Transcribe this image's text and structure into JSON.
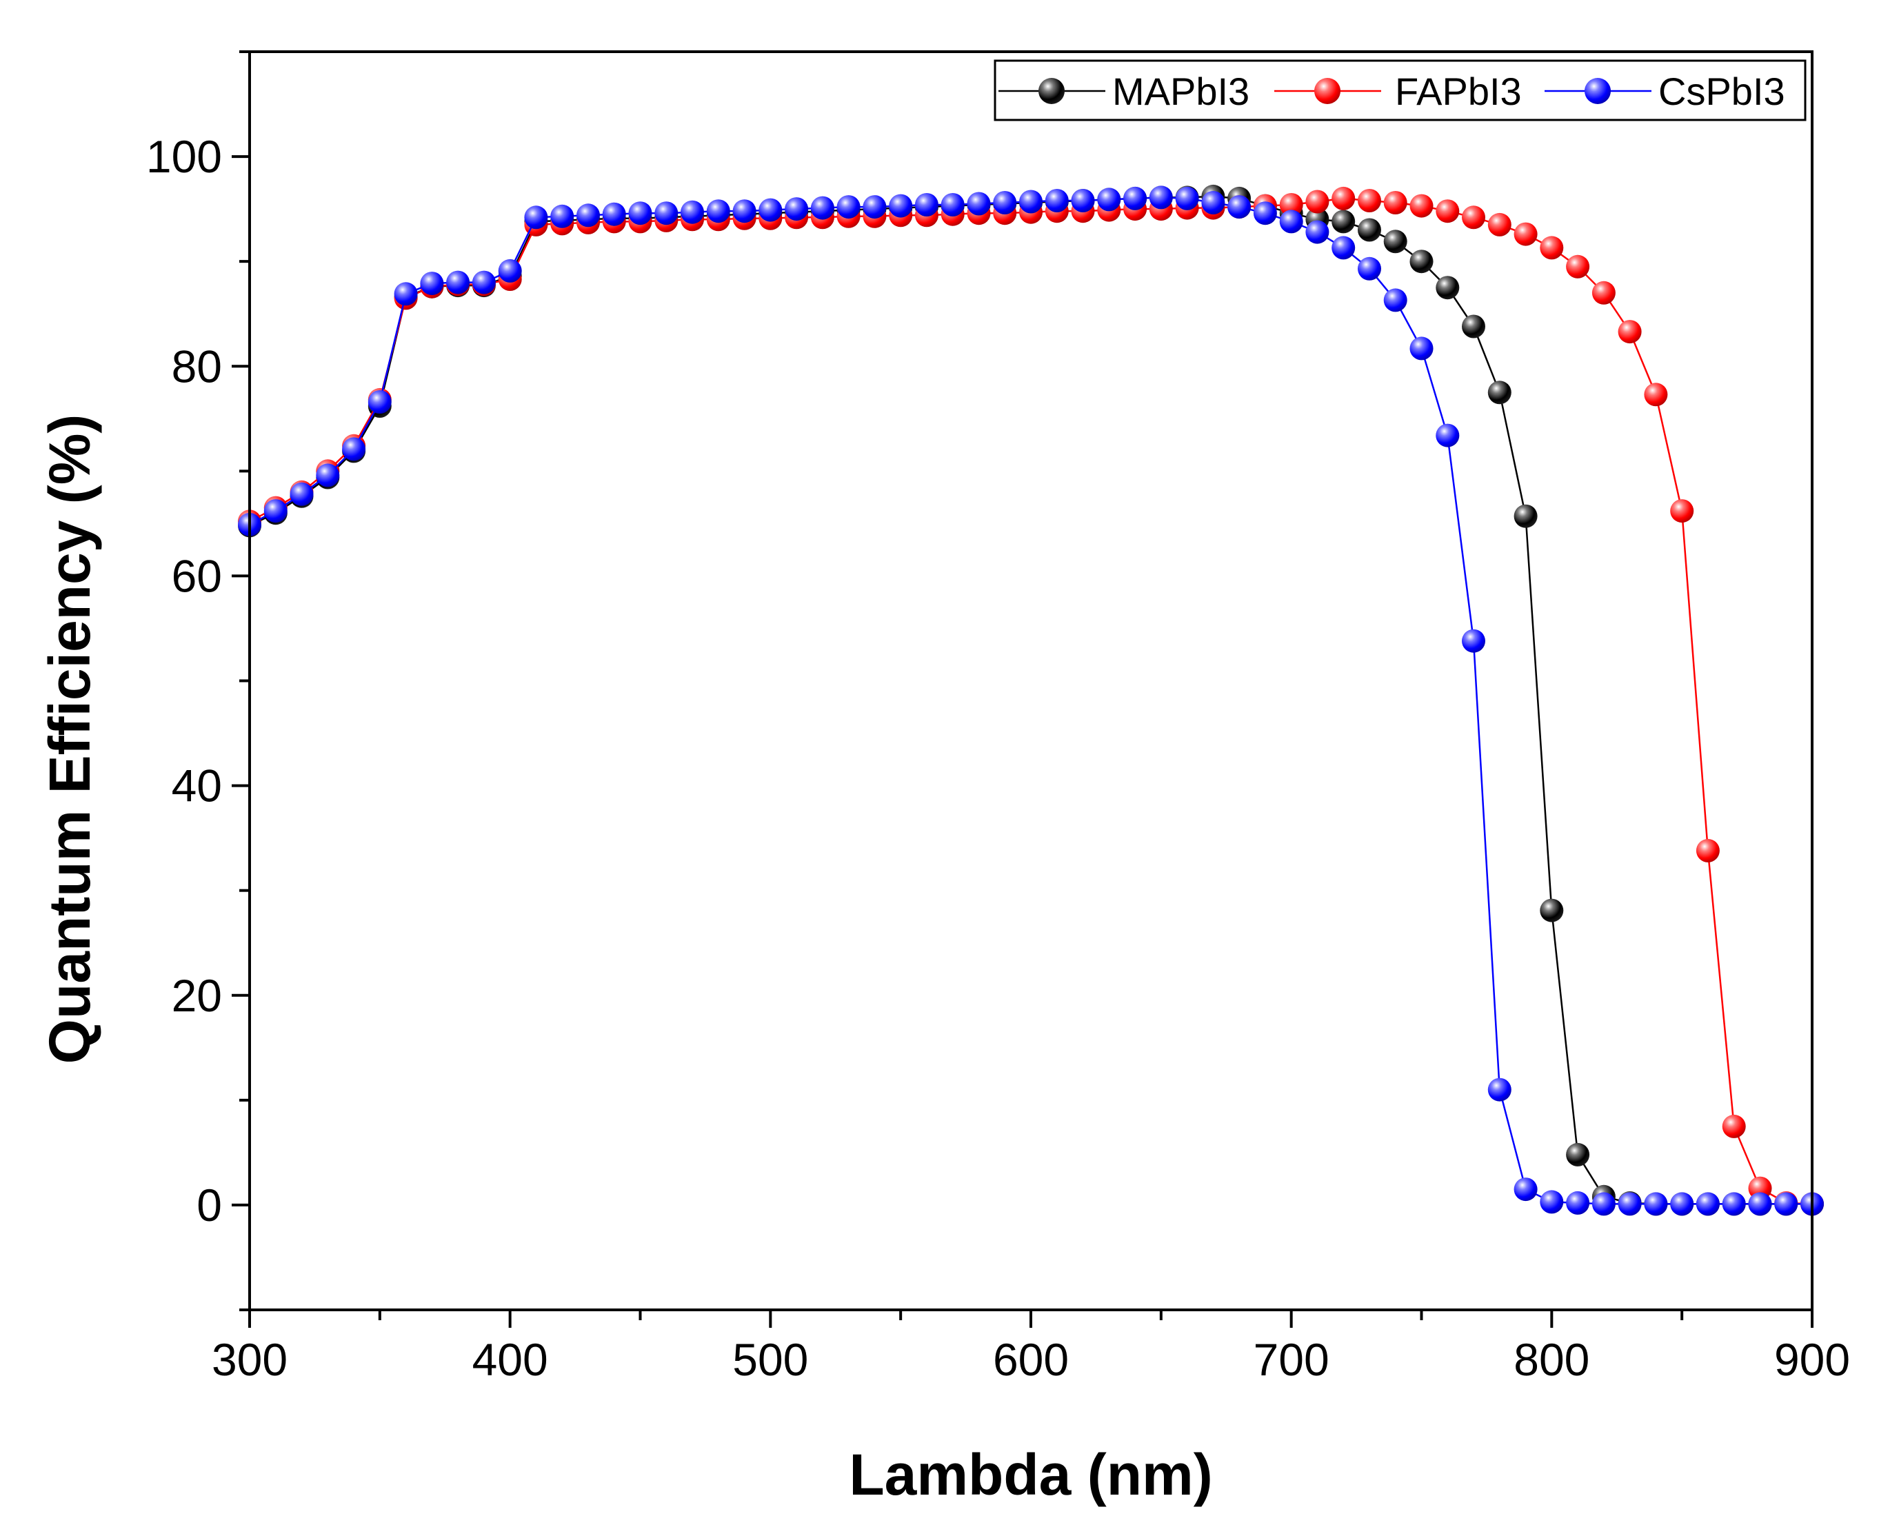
{
  "colors": {
    "MAPbI3": "#000000",
    "FAPbI3": "#ff0000",
    "CsPbI3": "#0000ff",
    "axis": "#000000"
  },
  "chart_data": {
    "type": "line",
    "title": "",
    "xlabel": "Lambda (nm)",
    "ylabel": "Quantum Efficiency (%)",
    "xlim": [
      300,
      900
    ],
    "ylim": [
      -10,
      110
    ],
    "xticks": [
      300,
      400,
      500,
      600,
      700,
      800,
      900
    ],
    "yticks": [
      0,
      20,
      40,
      60,
      80,
      100
    ],
    "xtick_labels": [
      "300",
      "400",
      "500",
      "600",
      "700",
      "800",
      "900"
    ],
    "ytick_labels": [
      "0",
      "20",
      "40",
      "60",
      "80",
      "100"
    ],
    "grid": false,
    "legend_position": "top-right",
    "x": [
      300,
      310,
      320,
      330,
      340,
      350,
      360,
      370,
      380,
      390,
      400,
      410,
      420,
      430,
      440,
      450,
      460,
      470,
      480,
      490,
      500,
      510,
      520,
      530,
      540,
      550,
      560,
      570,
      580,
      590,
      600,
      610,
      620,
      630,
      640,
      650,
      660,
      670,
      680,
      690,
      700,
      710,
      720,
      730,
      740,
      750,
      760,
      770,
      780,
      790,
      800,
      810,
      820,
      830,
      840,
      850,
      860,
      870,
      880,
      890,
      900
    ],
    "series": [
      {
        "name": "MAPbI3",
        "values": [
          64.8,
          66.0,
          67.6,
          69.4,
          71.9,
          76.2,
          86.6,
          87.6,
          87.7,
          87.7,
          88.6,
          93.8,
          93.9,
          94.0,
          94.1,
          94.1,
          94.2,
          94.3,
          94.4,
          94.5,
          94.6,
          94.7,
          94.8,
          94.9,
          95.0,
          95.1,
          95.2,
          95.3,
          95.4,
          95.5,
          95.6,
          95.7,
          95.8,
          95.9,
          96.0,
          96.1,
          96.1,
          96.2,
          96.0,
          95.3,
          94.6,
          94.0,
          93.8,
          93.0,
          91.9,
          90.0,
          87.5,
          83.8,
          77.5,
          65.7,
          28.1,
          4.8,
          0.8,
          0.2,
          0.1,
          0.1,
          0.1,
          0.1,
          0.1,
          0.1,
          0.1
        ]
      },
      {
        "name": "FAPbI3",
        "values": [
          65.2,
          66.5,
          68.0,
          70.0,
          72.4,
          76.8,
          86.5,
          87.6,
          87.8,
          87.8,
          88.3,
          93.5,
          93.6,
          93.7,
          93.8,
          93.8,
          93.9,
          94.0,
          94.0,
          94.1,
          94.1,
          94.2,
          94.2,
          94.3,
          94.3,
          94.4,
          94.4,
          94.5,
          94.6,
          94.6,
          94.7,
          94.8,
          94.8,
          94.9,
          95.0,
          95.0,
          95.1,
          95.1,
          95.2,
          95.3,
          95.4,
          95.7,
          96.0,
          95.8,
          95.6,
          95.3,
          94.8,
          94.2,
          93.5,
          92.6,
          91.3,
          89.5,
          87.0,
          83.3,
          77.3,
          66.2,
          33.8,
          7.5,
          1.6,
          0.2,
          0.1
        ]
      },
      {
        "name": "CsPbI3",
        "values": [
          64.9,
          66.2,
          67.8,
          69.6,
          72.1,
          76.6,
          86.9,
          87.9,
          88.0,
          88.0,
          89.1,
          94.2,
          94.3,
          94.4,
          94.5,
          94.6,
          94.6,
          94.7,
          94.8,
          94.8,
          94.9,
          95.0,
          95.1,
          95.2,
          95.2,
          95.3,
          95.4,
          95.4,
          95.5,
          95.6,
          95.7,
          95.8,
          95.8,
          95.9,
          96.0,
          96.1,
          96.0,
          95.6,
          95.2,
          94.6,
          93.8,
          92.8,
          91.3,
          89.3,
          86.3,
          81.7,
          73.4,
          53.8,
          11.0,
          1.5,
          0.3,
          0.2,
          0.1,
          0.1,
          0.1,
          0.1,
          0.1,
          0.1,
          0.1,
          0.1,
          0.1
        ]
      }
    ]
  }
}
